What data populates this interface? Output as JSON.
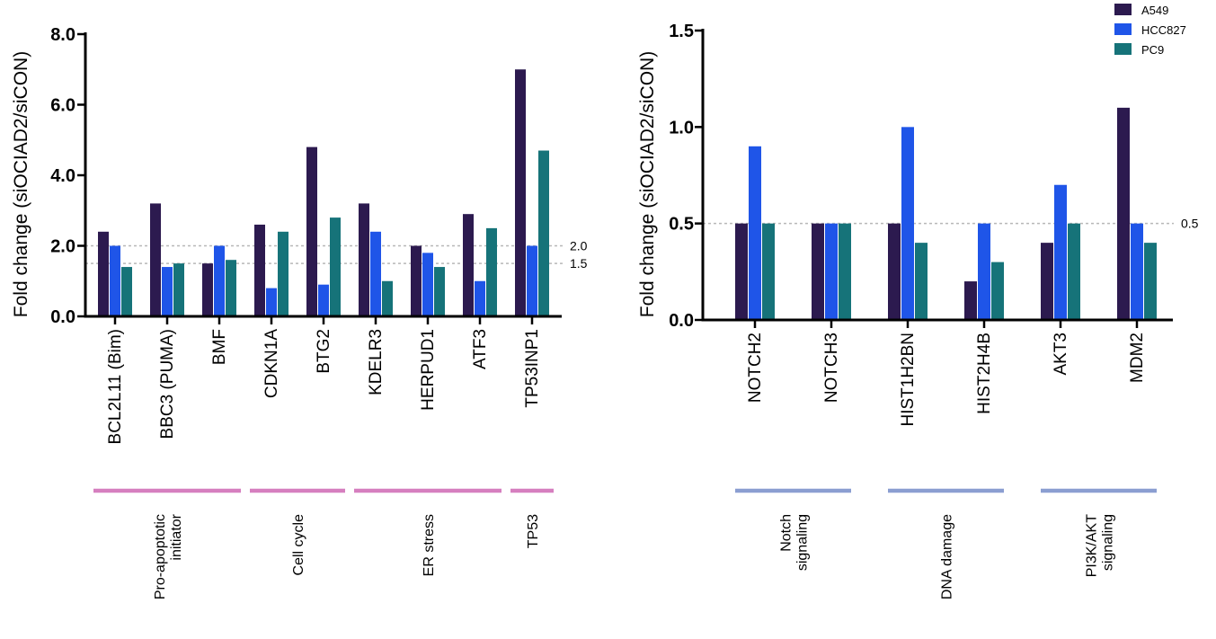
{
  "colors": {
    "A549": "#2c1a4f",
    "HCC827": "#1f55e8",
    "PC9": "#167379",
    "refline": "#b8b8b8",
    "group_left": "#d67fbf",
    "group_right": "#8b9ed1",
    "axis": "#000000"
  },
  "legend": {
    "position": "top-right",
    "entries": [
      "A549",
      "HCC827",
      "PC9"
    ]
  },
  "chart_data": [
    {
      "type": "bar",
      "ylabel": "Fold change (siOCIAD2/siCON)",
      "ylim": [
        0,
        8
      ],
      "yticks": [
        "0.0",
        "2.0",
        "4.0",
        "6.0",
        "8.0"
      ],
      "categories": [
        "BCL2L11 (Bim)",
        "BBC3 (PUMA)",
        "BMF",
        "CDKN1A",
        "BTG2",
        "KDELR3",
        "HERPUD1",
        "ATF3",
        "TP53INP1"
      ],
      "series": [
        {
          "name": "A549",
          "values": [
            2.4,
            3.2,
            1.5,
            2.6,
            4.8,
            3.2,
            2.0,
            2.9,
            7.0
          ]
        },
        {
          "name": "HCC827",
          "values": [
            2.0,
            1.4,
            2.0,
            0.8,
            0.9,
            2.4,
            1.8,
            1.0,
            2.0
          ]
        },
        {
          "name": "PC9",
          "values": [
            1.4,
            1.5,
            1.6,
            2.4,
            2.8,
            1.0,
            1.4,
            2.5,
            4.7
          ]
        }
      ],
      "reference_lines": [
        {
          "value": 2.0,
          "label": "2.0"
        },
        {
          "value": 1.5,
          "label": "1.5"
        }
      ],
      "groups": [
        {
          "label_lines": [
            "Pro-apoptotic",
            "initiator"
          ],
          "from": 0,
          "to": 2
        },
        {
          "label_lines": [
            "Cell cycle"
          ],
          "from": 3,
          "to": 4
        },
        {
          "label_lines": [
            "ER stress"
          ],
          "from": 5,
          "to": 7
        },
        {
          "label_lines": [
            "TP53"
          ],
          "from": 8,
          "to": 8
        }
      ]
    },
    {
      "type": "bar",
      "ylabel": "Fold change (siOCIAD2/siCON)",
      "ylim": [
        0,
        1.5
      ],
      "yticks": [
        "0.0",
        "0.5",
        "1.0",
        "1.5"
      ],
      "categories": [
        "NOTCH2",
        "NOTCH3",
        "HIST1H2BN",
        "HIST2H4B",
        "AKT3",
        "MDM2"
      ],
      "series": [
        {
          "name": "A549",
          "values": [
            0.5,
            0.5,
            0.5,
            0.2,
            0.4,
            1.1
          ]
        },
        {
          "name": "HCC827",
          "values": [
            0.9,
            0.5,
            1.0,
            0.5,
            0.7,
            0.5
          ]
        },
        {
          "name": "PC9",
          "values": [
            0.5,
            0.5,
            0.4,
            0.3,
            0.5,
            0.4
          ]
        }
      ],
      "reference_lines": [
        {
          "value": 0.5,
          "label": "0.5"
        }
      ],
      "groups": [
        {
          "label_lines": [
            "Notch",
            "signaling"
          ],
          "from": 0,
          "to": 1
        },
        {
          "label_lines": [
            "DNA damage"
          ],
          "from": 2,
          "to": 3
        },
        {
          "label_lines": [
            "PI3K/AKT",
            "signaling"
          ],
          "from": 4,
          "to": 5
        }
      ]
    }
  ]
}
